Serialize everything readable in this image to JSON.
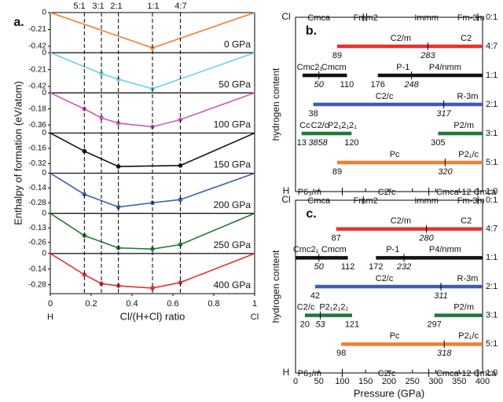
{
  "chart_data": [
    {
      "panel_label": "a.",
      "type": "line",
      "xlabel": "Cl/(H+Cl) ratio",
      "ylabel": "Enthalpy of formation (eV/atom)",
      "xlim": [
        0,
        1
      ],
      "x_ticks": [
        {
          "v": 0,
          "label": "0"
        },
        {
          "v": 0.2,
          "label": "0.2"
        },
        {
          "v": 0.4,
          "label": "0.4"
        },
        {
          "v": 0.6,
          "label": "0.6"
        },
        {
          "v": 0.8,
          "label": "0.8"
        },
        {
          "v": 1,
          "label": "1"
        }
      ],
      "x_end_labels": {
        "left": "H",
        "right": "Cl"
      },
      "ratio_lines": [
        {
          "x": 0.1667,
          "label": "5:1"
        },
        {
          "x": 0.25,
          "label": "3:1"
        },
        {
          "x": 0.3333,
          "label": "2:1"
        },
        {
          "x": 0.5,
          "label": "1:1"
        },
        {
          "x": 0.6364,
          "label": "4:7"
        }
      ],
      "subplots": [
        {
          "pressure": "0 GPa",
          "color": "#f07f2f",
          "yticks": [
            "0",
            "-0.21",
            "-0.42"
          ],
          "ymin": -0.5,
          "points": [
            {
              "x": 0,
              "y": 0
            },
            {
              "x": 0.5,
              "y": -0.44
            },
            {
              "x": 1,
              "y": 0
            }
          ]
        },
        {
          "pressure": "50 GPa",
          "color": "#6cd0e0",
          "yticks": [
            "0",
            "-0.21",
            "-0.42"
          ],
          "ymin": -0.5,
          "points": [
            {
              "x": 0,
              "y": 0
            },
            {
              "x": 0.25,
              "y": -0.26
            },
            {
              "x": 0.3333,
              "y": -0.33
            },
            {
              "x": 0.5,
              "y": -0.45
            },
            {
              "x": 1,
              "y": 0
            }
          ]
        },
        {
          "pressure": "100 GPa",
          "color": "#c95bbf",
          "yticks": [
            "0",
            "-0.18",
            "-0.36"
          ],
          "ymin": -0.45,
          "points": [
            {
              "x": 0,
              "y": 0
            },
            {
              "x": 0.1667,
              "y": -0.18
            },
            {
              "x": 0.25,
              "y": -0.28
            },
            {
              "x": 0.3333,
              "y": -0.34
            },
            {
              "x": 0.5,
              "y": -0.38
            },
            {
              "x": 0.6364,
              "y": -0.3
            },
            {
              "x": 1,
              "y": 0
            }
          ]
        },
        {
          "pressure": "150 GPa",
          "color": "#111111",
          "yticks": [
            "0",
            "-0.16",
            "-0.32"
          ],
          "ymin": -0.42,
          "points": [
            {
              "x": 0,
              "y": 0
            },
            {
              "x": 0.1667,
              "y": -0.19
            },
            {
              "x": 0.3333,
              "y": -0.35
            },
            {
              "x": 0.6364,
              "y": -0.34
            },
            {
              "x": 1,
              "y": 0
            }
          ]
        },
        {
          "pressure": "200 GPa",
          "color": "#3e5fae",
          "yticks": [
            "0",
            "-0.14",
            "-0.28"
          ],
          "ymin": -0.38,
          "points": [
            {
              "x": 0,
              "y": 0
            },
            {
              "x": 0.1667,
              "y": -0.2
            },
            {
              "x": 0.3333,
              "y": -0.32
            },
            {
              "x": 0.5,
              "y": -0.28
            },
            {
              "x": 0.6364,
              "y": -0.25
            },
            {
              "x": 1,
              "y": 0
            }
          ]
        },
        {
          "pressure": "250 GPa",
          "color": "#1f7a3a",
          "yticks": [
            "0",
            "-0.13",
            "-0.26"
          ],
          "ymin": -0.36,
          "points": [
            {
              "x": 0,
              "y": 0
            },
            {
              "x": 0.1667,
              "y": -0.2
            },
            {
              "x": 0.3333,
              "y": -0.31
            },
            {
              "x": 0.5,
              "y": -0.32
            },
            {
              "x": 0.6364,
              "y": -0.28
            },
            {
              "x": 1,
              "y": 0
            }
          ]
        },
        {
          "pressure": "400 GPa",
          "color": "#e8312f",
          "yticks": [
            "0",
            "-0.14",
            "-0.28"
          ],
          "ymin": -0.36,
          "points": [
            {
              "x": 0,
              "y": 0
            },
            {
              "x": 0.1667,
              "y": -0.19
            },
            {
              "x": 0.25,
              "y": -0.27
            },
            {
              "x": 0.3333,
              "y": -0.29
            },
            {
              "x": 0.5,
              "y": -0.31
            },
            {
              "x": 0.6364,
              "y": -0.26
            },
            {
              "x": 1,
              "y": 0
            }
          ]
        }
      ]
    },
    {
      "panel_label": "b.",
      "type": "phase-range",
      "ylabel": "hydrogen content",
      "xlim": [
        0,
        400
      ],
      "x_ticks": [
        0,
        50,
        100,
        150,
        200,
        250,
        300,
        350,
        400
      ],
      "top_left": "Cl",
      "bottom_left": "H",
      "top_phases": [
        {
          "p": 50,
          "label": "Cmca"
        },
        {
          "p": 150,
          "label": "Fmm2"
        },
        {
          "p": 280,
          "label": "Immm"
        },
        {
          "p": 375,
          "label": "Fm-3m"
        }
      ],
      "top_ticks": [
        145,
        152
      ],
      "bottom_phases": [
        {
          "p": 30,
          "label": "P6₃/m"
        },
        {
          "p": 195,
          "label": "C2/c"
        },
        {
          "p": 365,
          "label": "Cmca-12 Cmca"
        }
      ],
      "rows": [
        {
          "ratio": "0:1"
        },
        {
          "ratio": "4:7",
          "color": "#e8312f",
          "start": 89,
          "end": 400,
          "phases": [
            {
              "p": 225,
              "label": "C2/m"
            },
            {
              "p": 365,
              "label": "C2"
            }
          ],
          "transitions": [
            {
              "p": 283,
              "label": "283",
              "italic": true
            }
          ],
          "start_label": {
            "p": 89,
            "label": "89"
          }
        },
        {
          "ratio": "1:1",
          "color": "#111111",
          "segments": [
            [
              15,
              110
            ],
            [
              176,
              400
            ]
          ],
          "phases": [
            {
              "p": 30,
              "label": "Cmc2₁"
            },
            {
              "p": 82,
              "label": "Cmcm"
            },
            {
              "p": 230,
              "label": "P-1"
            },
            {
              "p": 320,
              "label": "P4/nmm"
            }
          ],
          "transitions": [
            {
              "p": 50,
              "label": "50",
              "italic": true
            },
            {
              "p": 248,
              "label": "248",
              "italic": true
            }
          ],
          "value_labels": [
            {
              "p": 110,
              "label": "110"
            },
            {
              "p": 176,
              "label": "176"
            }
          ]
        },
        {
          "ratio": "2:1",
          "color": "#3e5fae",
          "start": 38,
          "end": 400,
          "phases": [
            {
              "p": 190,
              "label": "C2/c"
            },
            {
              "p": 368,
              "label": "R-3m"
            }
          ],
          "transitions": [
            {
              "p": 317,
              "label": "317",
              "italic": true
            }
          ],
          "start_label": {
            "p": 38,
            "label": "38"
          }
        },
        {
          "ratio": "3:1",
          "color": "#1f7a3a",
          "segments": [
            [
              13,
              120
            ],
            [
              305,
              400
            ]
          ],
          "phases": [
            {
              "p": 20,
              "label": "Cc"
            },
            {
              "p": 52,
              "label": "C2/c"
            },
            {
              "p": 100,
              "label": "P2₁2₁2₁"
            },
            {
              "p": 360,
              "label": "P2/m"
            }
          ],
          "value_labels": [
            {
              "p": 13,
              "label": "13"
            },
            {
              "p": 120,
              "label": "120"
            },
            {
              "p": 305,
              "label": "305"
            }
          ],
          "italic_labels": [
            {
              "p": 48,
              "label": "3858"
            }
          ]
        },
        {
          "ratio": "5:1",
          "color": "#f07f2f",
          "start": 89,
          "end": 400,
          "phases": [
            {
              "p": 212,
              "label": "Pc"
            },
            {
              "p": 370,
              "label": "P2₁/c"
            }
          ],
          "transitions": [
            {
              "p": 320,
              "label": "320",
              "italic": true
            }
          ],
          "start_label": {
            "p": 89,
            "label": "89"
          }
        },
        {
          "ratio": "1:0"
        }
      ]
    },
    {
      "panel_label": "c.",
      "type": "phase-range",
      "ylabel": "hydrogen content",
      "xlabel": "Pressure (GPa)",
      "xlim": [
        0,
        400
      ],
      "x_ticks": [
        0,
        50,
        100,
        150,
        200,
        250,
        300,
        350,
        400
      ],
      "top_left": "Cl",
      "bottom_left": "H",
      "top_phases": [
        {
          "p": 50,
          "label": "Cmca"
        },
        {
          "p": 150,
          "label": "Fmm2"
        },
        {
          "p": 280,
          "label": "Immm"
        },
        {
          "p": 375,
          "label": "Fm-3m"
        }
      ],
      "top_ticks": [
        145
      ],
      "bottom_phases": [
        {
          "p": 30,
          "label": "P6₃/m"
        },
        {
          "p": 195,
          "label": "C2/c"
        },
        {
          "p": 365,
          "label": "Cmca-12 Cmca"
        }
      ],
      "rows": [
        {
          "ratio": "0:1"
        },
        {
          "ratio": "4:7",
          "color": "#e8312f",
          "start": 87,
          "end": 400,
          "phases": [
            {
              "p": 225,
              "label": "C2/m"
            },
            {
              "p": 365,
              "label": "C2"
            }
          ],
          "transitions": [
            {
              "p": 280,
              "label": "280",
              "italic": true
            }
          ],
          "start_label": {
            "p": 87,
            "label": "87"
          }
        },
        {
          "ratio": "1:1",
          "color": "#111111",
          "segments": [
            [
              0,
              112
            ],
            [
              172,
              400
            ]
          ],
          "phases": [
            {
              "p": 22,
              "label": "Cmc2₁"
            },
            {
              "p": 82,
              "label": "Cmcm"
            },
            {
              "p": 208,
              "label": "P-1"
            },
            {
              "p": 320,
              "label": "P4/nmm"
            }
          ],
          "transitions": [
            {
              "p": 50,
              "label": "50",
              "italic": true
            },
            {
              "p": 232,
              "label": "232",
              "italic": true
            }
          ],
          "value_labels": [
            {
              "p": 112,
              "label": "112"
            },
            {
              "p": 172,
              "label": "172"
            }
          ]
        },
        {
          "ratio": "2:1",
          "color": "#3e5fae",
          "start": 42,
          "end": 400,
          "phases": [
            {
              "p": 190,
              "label": "C2/c"
            },
            {
              "p": 368,
              "label": "R-3m"
            }
          ],
          "transitions": [
            {
              "p": 311,
              "label": "311",
              "italic": true
            }
          ],
          "start_label": {
            "p": 42,
            "label": "42"
          }
        },
        {
          "ratio": "3:1",
          "color": "#1f7a3a",
          "segments": [
            [
              20,
              121
            ],
            [
              297,
              400
            ]
          ],
          "phases": [
            {
              "p": 22,
              "label": "C2/c"
            },
            {
              "p": 82,
              "label": "P2₁2₁2₁"
            },
            {
              "p": 360,
              "label": "P2/m"
            }
          ],
          "transitions": [
            {
              "p": 53,
              "label": "53",
              "italic": true
            }
          ],
          "value_labels": [
            {
              "p": 20,
              "label": "20"
            },
            {
              "p": 121,
              "label": "121"
            },
            {
              "p": 297,
              "label": "297"
            }
          ]
        },
        {
          "ratio": "5:1",
          "color": "#f07f2f",
          "start": 98,
          "end": 400,
          "phases": [
            {
              "p": 212,
              "label": "Pc"
            },
            {
              "p": 370,
              "label": "P2₁/c"
            }
          ],
          "transitions": [
            {
              "p": 318,
              "label": "318",
              "italic": true
            }
          ],
          "start_label": {
            "p": 98,
            "label": "98"
          }
        },
        {
          "ratio": "1:0"
        }
      ]
    }
  ]
}
